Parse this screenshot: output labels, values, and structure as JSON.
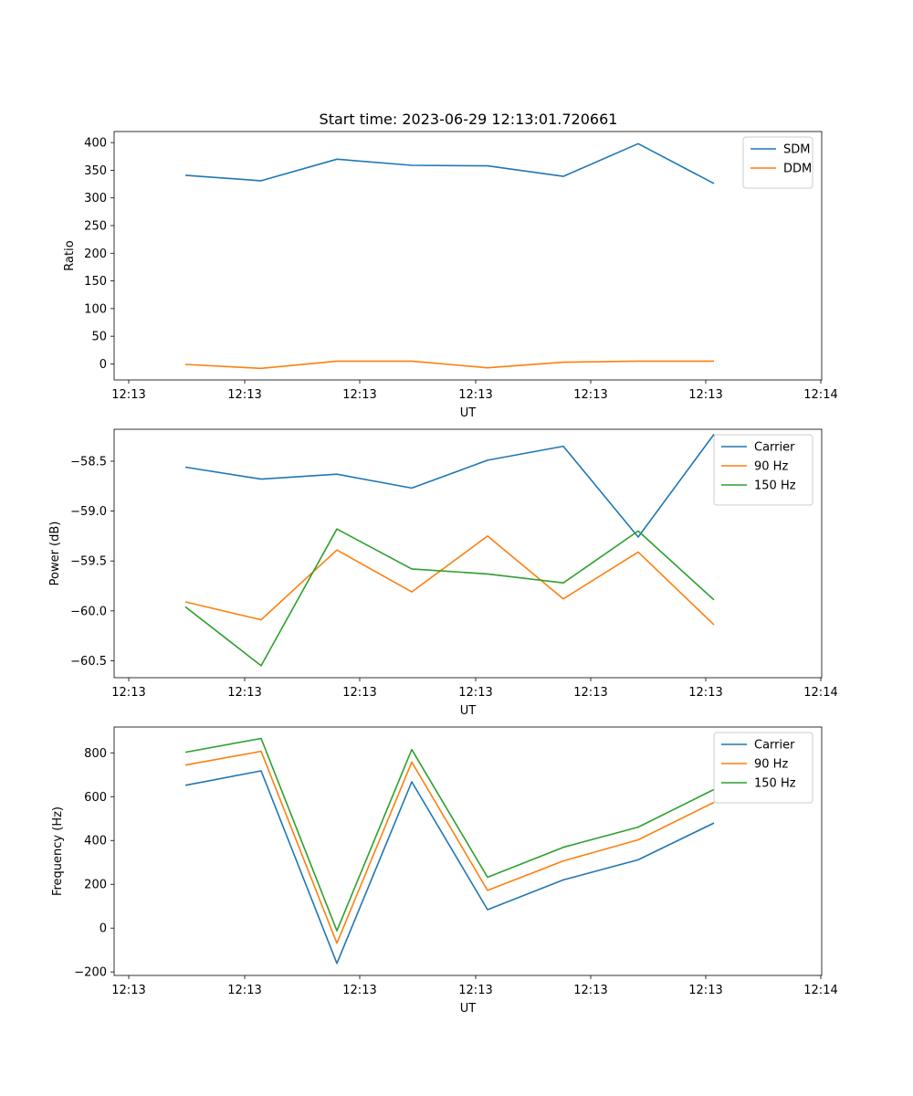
{
  "figure": {
    "title": "Start time: 2023-06-29 12:13:01.720661"
  },
  "chart_data": [
    {
      "type": "line",
      "xlabel": "UT",
      "ylabel": "Ratio",
      "x_tick_labels": [
        "12:13",
        "12:13",
        "12:13",
        "12:13",
        "12:13",
        "12:13",
        "12:14"
      ],
      "y_ticks": [
        0,
        50,
        100,
        150,
        200,
        250,
        300,
        350,
        400
      ],
      "ylim": [
        -29,
        420
      ],
      "legend_position": "top-right",
      "grid": false,
      "series": [
        {
          "name": "SDM",
          "color": "#1f77b4",
          "values": [
            341,
            331,
            370,
            359,
            358,
            339,
            398,
            326
          ]
        },
        {
          "name": "DDM",
          "color": "#ff7f0e",
          "values": [
            -1,
            -8,
            5,
            5,
            -7,
            3,
            5,
            5
          ]
        }
      ]
    },
    {
      "type": "line",
      "xlabel": "UT",
      "ylabel": "Power (dB)",
      "x_tick_labels": [
        "12:13",
        "12:13",
        "12:13",
        "12:13",
        "12:13",
        "12:13",
        "12:14"
      ],
      "y_ticks": [
        -58.5,
        -59.0,
        -59.5,
        -60.0,
        -60.5
      ],
      "y_tick_labels": [
        "−58.5",
        "−59.0",
        "−59.5",
        "−60.0",
        "−60.5"
      ],
      "ylim": [
        -60.67,
        -58.18
      ],
      "legend_position": "top-right",
      "grid": false,
      "series": [
        {
          "name": "Carrier",
          "color": "#1f77b4",
          "values": [
            -58.56,
            -58.68,
            -58.63,
            -58.77,
            -58.49,
            -58.35,
            -59.26,
            -58.23
          ]
        },
        {
          "name": "90 Hz",
          "color": "#ff7f0e",
          "values": [
            -59.91,
            -60.09,
            -59.39,
            -59.81,
            -59.25,
            -59.88,
            -59.41,
            -60.14
          ]
        },
        {
          "name": "150 Hz",
          "color": "#2ca02c",
          "values": [
            -59.96,
            -60.55,
            -59.18,
            -59.58,
            -59.63,
            -59.72,
            -59.2,
            -59.89
          ]
        }
      ]
    },
    {
      "type": "line",
      "xlabel": "UT",
      "ylabel": "Frequency (Hz)",
      "x_tick_labels": [
        "12:13",
        "12:13",
        "12:13",
        "12:13",
        "12:13",
        "12:13",
        "12:14"
      ],
      "y_ticks": [
        -200,
        0,
        200,
        400,
        600,
        800
      ],
      "y_tick_labels": [
        "−200",
        "0",
        "200",
        "400",
        "600",
        "800"
      ],
      "ylim": [
        -216,
        918
      ],
      "legend_position": "top-right",
      "grid": false,
      "series": [
        {
          "name": "Carrier",
          "color": "#1f77b4",
          "values": [
            652,
            718,
            -161,
            668,
            84,
            220,
            312,
            480
          ]
        },
        {
          "name": "90 Hz",
          "color": "#ff7f0e",
          "values": [
            744,
            807,
            -69,
            758,
            172,
            307,
            403,
            574
          ]
        },
        {
          "name": "150 Hz",
          "color": "#2ca02c",
          "values": [
            803,
            866,
            -12,
            815,
            232,
            369,
            461,
            633
          ]
        }
      ]
    }
  ]
}
